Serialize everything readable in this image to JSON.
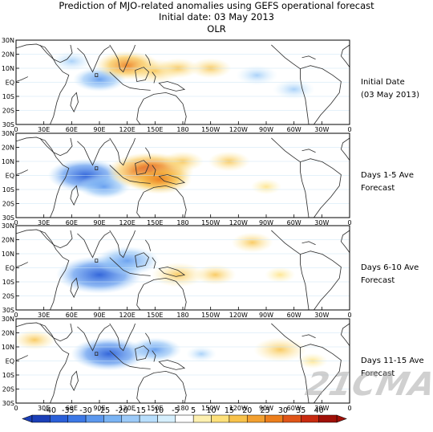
{
  "title": {
    "line1": "Prediction of MJO-related anomalies using GEFS operational forecast",
    "line2": "Initial date: 03 May 2013",
    "line3": "OLR"
  },
  "watermark": "21CMA",
  "colors": {
    "frame": "#000000",
    "grid": "#c9e3f5",
    "coast": "#303030",
    "neg_strong": "#2a5fd8",
    "neg_mid": "#5c98ee",
    "neg_weak": "#a8d4fb",
    "pos_weak": "#fde89a",
    "pos_mid": "#f8c24a",
    "pos_strong": "#ec7e1c",
    "pos_peak": "#d43c12"
  },
  "chart_data": {
    "type": "heatmap",
    "variable": "OLR",
    "x_ticks": [
      "0",
      "30E",
      "60E",
      "90E",
      "120E",
      "150E",
      "180",
      "150W",
      "120W",
      "90W",
      "60W",
      "30W",
      "0"
    ],
    "y_ticks": [
      "30N",
      "20N",
      "10N",
      "EQ",
      "10S",
      "20S",
      "30S"
    ],
    "x_range_deg_east": [
      0,
      360
    ],
    "y_range_deg_north": [
      -30,
      30
    ],
    "panels": [
      {
        "label1": "Initial Date",
        "label2": "(03 May 2013)",
        "anomalies": [
          {
            "lon": 90,
            "lat": 2,
            "value": -15
          },
          {
            "lon": 60,
            "lat": 15,
            "value": -10
          },
          {
            "lon": 120,
            "lat": 12,
            "value": 20
          },
          {
            "lon": 150,
            "lat": 8,
            "value": 15
          },
          {
            "lon": 175,
            "lat": 10,
            "value": 10
          },
          {
            "lon": 210,
            "lat": 10,
            "value": 10
          },
          {
            "lon": 260,
            "lat": 5,
            "value": -10
          },
          {
            "lon": 300,
            "lat": -5,
            "value": -10
          }
        ]
      },
      {
        "label1": "Days 1-5 Ave",
        "label2": "Forecast",
        "anomalies": [
          {
            "lon": 75,
            "lat": 0,
            "value": -25
          },
          {
            "lon": 95,
            "lat": -8,
            "value": -15
          },
          {
            "lon": 145,
            "lat": 3,
            "value": 30
          },
          {
            "lon": 155,
            "lat": -3,
            "value": 20
          },
          {
            "lon": 180,
            "lat": 10,
            "value": 10
          },
          {
            "lon": 230,
            "lat": 10,
            "value": 10
          },
          {
            "lon": 270,
            "lat": -8,
            "value": 5
          }
        ]
      },
      {
        "label1": "Days 6-10 Ave",
        "label2": "Forecast",
        "anomalies": [
          {
            "lon": 90,
            "lat": -5,
            "value": -30
          },
          {
            "lon": 120,
            "lat": 5,
            "value": -20
          },
          {
            "lon": 175,
            "lat": -5,
            "value": 15
          },
          {
            "lon": 215,
            "lat": -5,
            "value": 10
          },
          {
            "lon": 255,
            "lat": 18,
            "value": 10
          },
          {
            "lon": 285,
            "lat": -5,
            "value": 5
          }
        ]
      },
      {
        "label1": "Days 11-15 Ave",
        "label2": "Forecast",
        "anomalies": [
          {
            "lon": 100,
            "lat": 5,
            "value": -25
          },
          {
            "lon": 150,
            "lat": 8,
            "value": -15
          },
          {
            "lon": 20,
            "lat": 15,
            "value": 10
          },
          {
            "lon": 200,
            "lat": 5,
            "value": -5
          },
          {
            "lon": 285,
            "lat": 8,
            "value": 15
          },
          {
            "lon": 320,
            "lat": 0,
            "value": 5
          }
        ]
      }
    ],
    "colorbar": {
      "labels": [
        "-40",
        "-35",
        "-30",
        "-25",
        "-20",
        "-15",
        "-10",
        "-5",
        "5",
        "10",
        "15",
        "20",
        "25",
        "30",
        "35",
        "40"
      ],
      "colors": [
        "#1b3fb8",
        "#2a5fd8",
        "#3c78e6",
        "#5c98ee",
        "#7ab4f4",
        "#9ccaf8",
        "#b8defc",
        "#d6effd",
        "#ffffff",
        "#fdf0b0",
        "#fde07a",
        "#f8c24a",
        "#f2a030",
        "#ec7e1c",
        "#e05518",
        "#c82a10",
        "#a01008"
      ]
    }
  }
}
